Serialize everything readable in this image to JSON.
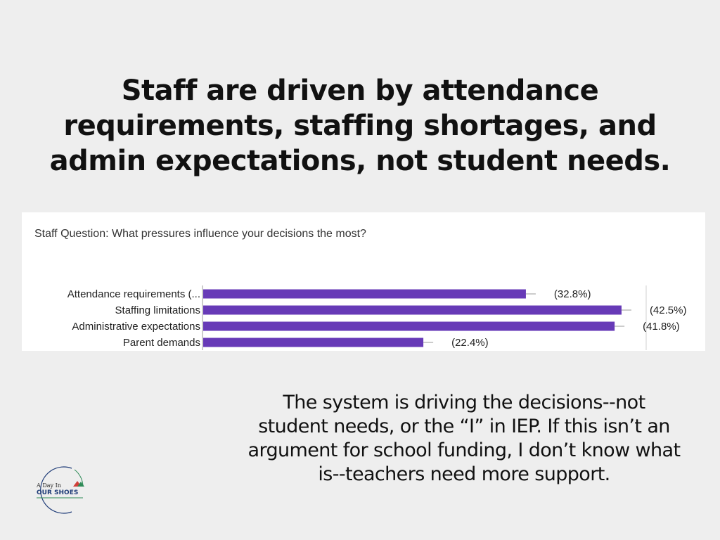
{
  "headline": [
    "Staff are driven by attendance",
    "requirements, staffing shortages, and",
    "admin expectations, not student needs."
  ],
  "chart_data": {
    "type": "bar",
    "orientation": "horizontal",
    "title": "Staff Question: What pressures influence your decisions the most?",
    "categories": [
      "Attendance requirements (...",
      "Staffing limitations",
      "Administrative expectations",
      "Parent demands"
    ],
    "values": [
      32.8,
      42.5,
      41.8,
      22.4
    ],
    "value_labels": [
      "(32.8%)",
      "(42.5%)",
      "(41.8%)",
      "(22.4%)"
    ],
    "xlim": [
      0,
      45
    ],
    "xlabel": "",
    "ylabel": "",
    "bar_color": "#673ab7",
    "grid": false,
    "error_bars": true,
    "legend": "none"
  },
  "caption": [
    "The system is driving the decisions--not",
    "student needs, or the “I” in IEP. If this isn’t an",
    "argument for school funding, I don’t know what",
    "is--teachers need more support."
  ],
  "logo": {
    "line1": "A Day In",
    "line2": "OUR SHOES"
  },
  "colors": {
    "background": "#eeeeee",
    "text": "#111111",
    "panel": "#ffffff",
    "bar": "#673ab7",
    "logo_blue": "#1f3c78",
    "logo_green": "#2e8b57",
    "logo_red": "#d0403a"
  }
}
